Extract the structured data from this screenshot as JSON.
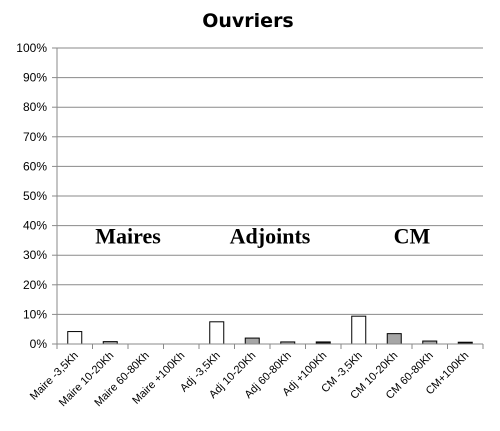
{
  "chart_data": {
    "type": "bar",
    "title": "Ouvriers",
    "xlabel": "",
    "ylabel": "",
    "ylim": [
      0,
      100
    ],
    "y_ticks": [
      "0%",
      "10%",
      "20%",
      "30%",
      "40%",
      "50%",
      "60%",
      "70%",
      "80%",
      "90%",
      "100%"
    ],
    "grid": true,
    "categories": [
      "Maire -3,5Kh",
      "Maire 10-20Kh",
      "Maire 60-80Kh",
      "Maire +100Kh",
      "Adj -3,5Kh",
      "Adj 10-20Kh",
      "Adj 60-80Kh",
      "Adj +100Kh",
      "CM -3,5Kh",
      "CM 10-20Kh",
      "CM 60-80Kh",
      "CM+100Kh"
    ],
    "values": [
      4.2,
      0.8,
      0,
      0,
      7.5,
      2,
      0.7,
      0.7,
      9.4,
      3.5,
      1,
      0.6
    ],
    "bar_colors": [
      "#ffffff",
      "#a6a6a6",
      "#ffffff",
      "#1a1a1a",
      "#ffffff",
      "#a6a6a6",
      "#a6a6a6",
      "#1a1a1a",
      "#ffffff",
      "#a6a6a6",
      "#a6a6a6",
      "#1a1a1a"
    ],
    "group_labels": [
      {
        "text": "Maires",
        "x": 1.5,
        "y": 34
      },
      {
        "text": "Adjoints",
        "x": 5.5,
        "y": 34
      },
      {
        "text": "CM",
        "x": 9.5,
        "y": 34
      }
    ]
  }
}
